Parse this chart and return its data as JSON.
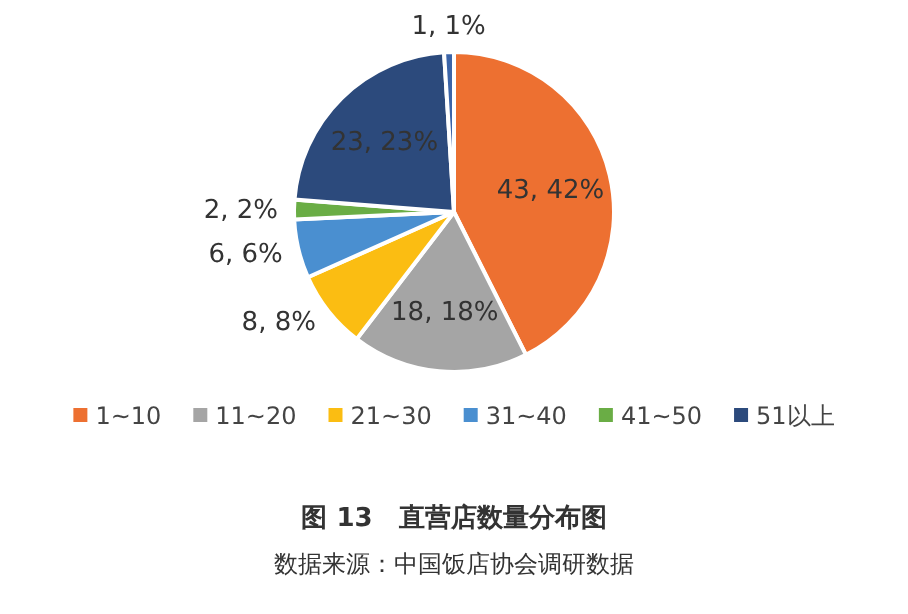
{
  "chart_data": {
    "type": "pie",
    "title": "图 13　直营店数量分布图",
    "annotations": [
      "数据来源：中国饭店协会调研数据"
    ],
    "categories": [
      "1~10",
      "11~20",
      "21~30",
      "31~40",
      "41~50",
      "51以上",
      null
    ],
    "values": [
      43,
      18,
      8,
      6,
      2,
      23,
      1
    ],
    "colors": [
      "#ed7031",
      "#a5a5a5",
      "#fbbd12",
      "#4a8fd0",
      "#6aad45",
      "#2c4a7c",
      "#3b64a8"
    ],
    "value_labels": [
      "43, 42%",
      "18, 18%",
      "8, 8%",
      "6, 6%",
      "2, 2%",
      "23, 23%",
      "1, 1%"
    ],
    "legend": "bottom"
  }
}
